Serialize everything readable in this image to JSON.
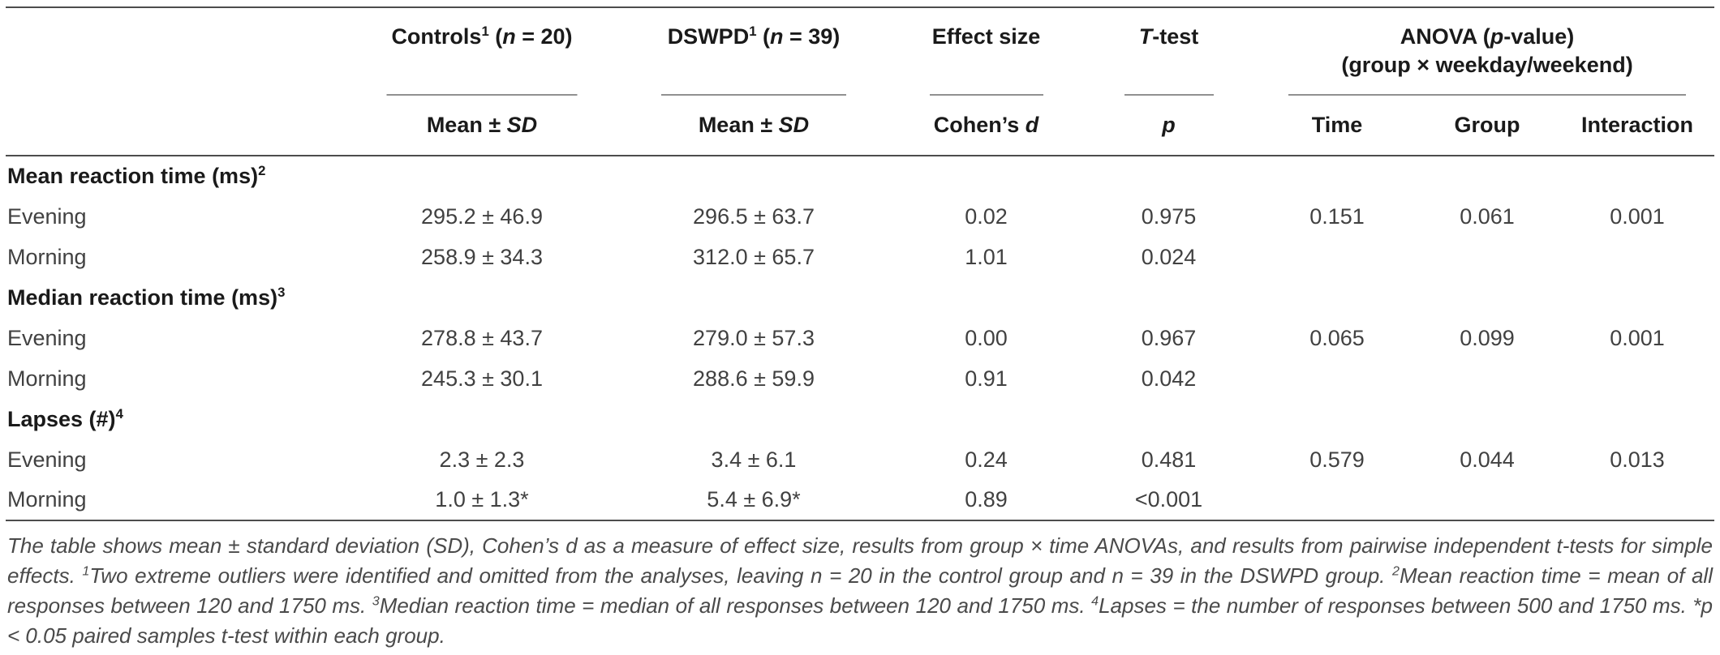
{
  "colors": {
    "heading_text": "#1a1a1a",
    "data_text": "#414141",
    "main_rule": "#4d4d4d",
    "partial_rule": "#909090",
    "footnote_text": "#4a4a4a",
    "background": "#ffffff"
  },
  "header": {
    "controls": {
      "title": [
        {
          "t": "Controls"
        },
        {
          "t": "1",
          "s": "sup"
        },
        {
          "t": " ("
        },
        {
          "t": "n",
          "s": "i"
        },
        {
          "t": " = 20)"
        }
      ],
      "sub": [
        {
          "t": "Mean ± "
        },
        {
          "t": "SD",
          "s": "i"
        }
      ]
    },
    "dswpd": {
      "title": [
        {
          "t": "DSWPD"
        },
        {
          "t": "1",
          "s": "sup"
        },
        {
          "t": " ("
        },
        {
          "t": "n",
          "s": "i"
        },
        {
          "t": " = 39)"
        }
      ],
      "sub": [
        {
          "t": "Mean ± "
        },
        {
          "t": "SD",
          "s": "i"
        }
      ]
    },
    "effect_size": {
      "title": [
        {
          "t": "Effect size"
        }
      ],
      "sub": [
        {
          "t": "Cohen’s "
        },
        {
          "t": "d",
          "s": "i"
        }
      ]
    },
    "t_test": {
      "title": [
        {
          "t": "T",
          "s": "i"
        },
        {
          "t": "-test"
        }
      ],
      "sub": [
        {
          "t": "p",
          "s": "i"
        }
      ]
    },
    "anova": {
      "title_line1": [
        {
          "t": "ANOVA ("
        },
        {
          "t": "p",
          "s": "i"
        },
        {
          "t": "-value)"
        }
      ],
      "title_line2": [
        {
          "t": "(group × weekday/weekend)"
        }
      ],
      "sub_time": [
        {
          "t": "Time"
        }
      ],
      "sub_group": [
        {
          "t": "Group"
        }
      ],
      "sub_interaction": [
        {
          "t": "Interaction"
        }
      ]
    }
  },
  "body": {
    "sections": [
      {
        "title": [
          {
            "t": "Mean reaction time (ms)"
          },
          {
            "t": "2",
            "s": "sup"
          }
        ],
        "rows": [
          {
            "label": "Evening",
            "controls": "295.2 ± 46.9",
            "dswpd": "296.5 ± 63.7",
            "cohens_d": "0.02",
            "p": "0.975",
            "time": "0.151",
            "group": "0.061",
            "interaction": "0.001"
          },
          {
            "label": "Morning",
            "controls": "258.9 ± 34.3",
            "dswpd": "312.0 ± 65.7",
            "cohens_d": "1.01",
            "p": "0.024",
            "time": "",
            "group": "",
            "interaction": ""
          }
        ]
      },
      {
        "title": [
          {
            "t": "Median reaction time (ms)"
          },
          {
            "t": "3",
            "s": "sup"
          }
        ],
        "rows": [
          {
            "label": "Evening",
            "controls": "278.8 ± 43.7",
            "dswpd": "279.0 ± 57.3",
            "cohens_d": "0.00",
            "p": "0.967",
            "time": "0.065",
            "group": "0.099",
            "interaction": "0.001"
          },
          {
            "label": "Morning",
            "controls": "245.3 ± 30.1",
            "dswpd": "288.6 ± 59.9",
            "cohens_d": "0.91",
            "p": "0.042",
            "time": "",
            "group": "",
            "interaction": ""
          }
        ]
      },
      {
        "title": [
          {
            "t": "Lapses (#)"
          },
          {
            "t": "4",
            "s": "sup"
          }
        ],
        "rows": [
          {
            "label": "Evening",
            "controls": "2.3 ± 2.3",
            "dswpd": "3.4 ± 6.1",
            "cohens_d": "0.24",
            "p": "0.481",
            "time": "0.579",
            "group": "0.044",
            "interaction": "0.013"
          },
          {
            "label": "Morning",
            "controls": "1.0 ± 1.3*",
            "dswpd": "5.4 ± 6.9*",
            "cohens_d": "0.89",
            "p": "<0.001",
            "time": "",
            "group": "",
            "interaction": ""
          }
        ]
      }
    ]
  },
  "footnote": {
    "parts": [
      {
        "t": "The table shows mean ± standard deviation (SD), Cohen’s d as a measure of effect size, results from group × time ANOVAs, and results from pairwise independent t-tests for simple effects. "
      },
      {
        "t": "1",
        "s": "sup"
      },
      {
        "t": "Two extreme outliers were identified and omitted from the analyses, leaving n = 20 in the control group and n = 39 in the DSWPD group. "
      },
      {
        "t": "2",
        "s": "sup"
      },
      {
        "t": "Mean reaction time = mean of all responses between 120 and 1750 ms. "
      },
      {
        "t": "3",
        "s": "sup"
      },
      {
        "t": "Median reaction time = median of all responses between 120 and 1750 ms. "
      },
      {
        "t": "4",
        "s": "sup"
      },
      {
        "t": "Lapses = the number of responses between 500 and 1750 ms. *p < 0.05 paired samples t-test within each group."
      }
    ]
  }
}
